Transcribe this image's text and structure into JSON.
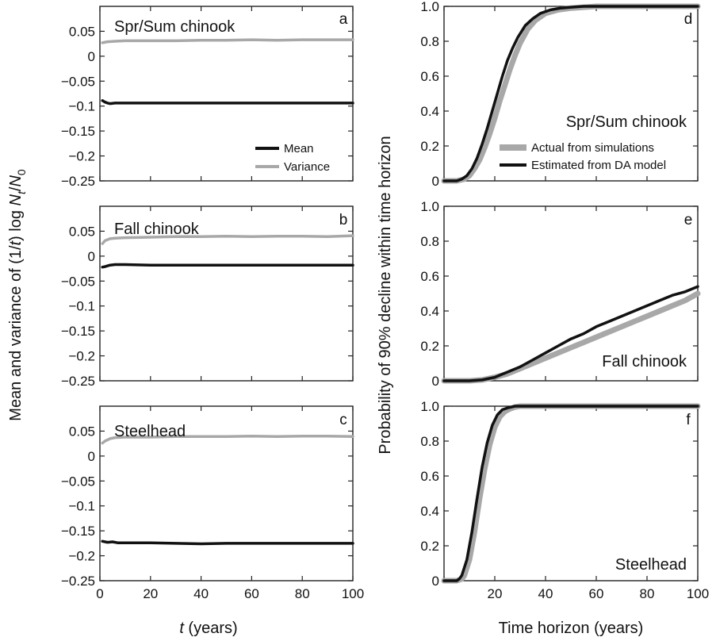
{
  "left_ylabel": {
    "prefix": "Mean and variance of (1/",
    "t": "t",
    "mid": ") log ",
    "N": "N",
    "sub_t": "t",
    "slash": "/",
    "N0": "N",
    "sub_0": "0"
  },
  "left_xlabel": {
    "t": "t",
    "rest": " (years)"
  },
  "right_ylabel": "Probability of 90% decline within time horizon",
  "right_xlabel": "Time horizon (years)",
  "legend_left": {
    "mean": "Mean",
    "variance": "Variance"
  },
  "legend_right": {
    "actual": "Actual from simulations",
    "estimated": "Estimated from DA model"
  },
  "colors": {
    "dark": "#111111",
    "gray": "#a8a8a8"
  },
  "chart_data": [
    {
      "id": "a",
      "type": "line",
      "panel_label": "Spr/Sum chinook",
      "letter": "a",
      "xlim": [
        0,
        100
      ],
      "ylim": [
        -0.25,
        0.1
      ],
      "yticks": [
        "0.05",
        "0",
        "−0.05",
        "−0.1",
        "−0.15",
        "−0.2",
        "−0.25"
      ],
      "ytick_values": [
        0.05,
        0,
        -0.05,
        -0.1,
        -0.15,
        -0.2,
        -0.25
      ],
      "series": [
        {
          "name": "Mean",
          "color": "dark",
          "x": [
            1,
            2,
            3,
            4,
            6,
            10,
            20,
            40,
            60,
            80,
            100
          ],
          "values": [
            -0.089,
            -0.092,
            -0.094,
            -0.095,
            -0.094,
            -0.094,
            -0.094,
            -0.094,
            -0.094,
            -0.094,
            -0.094
          ]
        },
        {
          "name": "Variance",
          "color": "gray",
          "x": [
            1,
            3,
            6,
            10,
            20,
            30,
            40,
            50,
            60,
            70,
            80,
            90,
            100
          ],
          "values": [
            0.027,
            0.029,
            0.03,
            0.031,
            0.031,
            0.031,
            0.032,
            0.032,
            0.033,
            0.032,
            0.033,
            0.033,
            0.033
          ]
        }
      ]
    },
    {
      "id": "b",
      "type": "line",
      "panel_label": "Fall chinook",
      "letter": "b",
      "xlim": [
        0,
        100
      ],
      "ylim": [
        -0.25,
        0.1
      ],
      "yticks": [
        "0.05",
        "0",
        "−0.05",
        "−0.1",
        "−0.15",
        "−0.2",
        "−0.25"
      ],
      "ytick_values": [
        0.05,
        0,
        -0.05,
        -0.1,
        -0.15,
        -0.2,
        -0.25
      ],
      "series": [
        {
          "name": "Mean",
          "color": "dark",
          "x": [
            1,
            2,
            4,
            6,
            10,
            20,
            40,
            60,
            80,
            100
          ],
          "values": [
            -0.022,
            -0.021,
            -0.018,
            -0.017,
            -0.017,
            -0.018,
            -0.018,
            -0.018,
            -0.018,
            -0.018
          ]
        },
        {
          "name": "Variance",
          "color": "gray",
          "x": [
            1,
            2,
            4,
            6,
            10,
            20,
            30,
            40,
            50,
            60,
            70,
            80,
            90,
            100
          ],
          "values": [
            0.025,
            0.031,
            0.035,
            0.036,
            0.037,
            0.038,
            0.039,
            0.039,
            0.04,
            0.039,
            0.04,
            0.04,
            0.039,
            0.041
          ]
        }
      ]
    },
    {
      "id": "c",
      "type": "line",
      "panel_label": "Steelhead",
      "letter": "c",
      "xlim": [
        0,
        100
      ],
      "ylim": [
        -0.25,
        0.1
      ],
      "yticks": [
        "0.05",
        "0",
        "−0.05",
        "−0.1",
        "−0.15",
        "−0.2",
        "−0.25"
      ],
      "ytick_values": [
        0.05,
        0,
        -0.05,
        -0.1,
        -0.15,
        -0.2,
        -0.25
      ],
      "xticks": [
        "0",
        "20",
        "40",
        "60",
        "80",
        "100"
      ],
      "xtick_values": [
        0,
        20,
        40,
        60,
        80,
        100
      ],
      "series": [
        {
          "name": "Mean",
          "color": "dark",
          "x": [
            1,
            3,
            5,
            7,
            10,
            20,
            30,
            40,
            50,
            60,
            80,
            100
          ],
          "values": [
            -0.171,
            -0.173,
            -0.172,
            -0.174,
            -0.174,
            -0.174,
            -0.175,
            -0.176,
            -0.175,
            -0.175,
            -0.175,
            -0.175
          ]
        },
        {
          "name": "Variance",
          "color": "gray",
          "x": [
            1,
            2,
            4,
            6,
            10,
            20,
            30,
            40,
            50,
            60,
            70,
            80,
            90,
            100
          ],
          "values": [
            0.026,
            0.03,
            0.035,
            0.037,
            0.038,
            0.038,
            0.039,
            0.039,
            0.039,
            0.04,
            0.039,
            0.04,
            0.04,
            0.039
          ]
        }
      ]
    },
    {
      "id": "d",
      "type": "line",
      "panel_label": "Spr/Sum chinook",
      "letter": "d",
      "xlim": [
        0,
        100
      ],
      "ylim": [
        0,
        1
      ],
      "yticks": [
        "1.0",
        "0.8",
        "0.6",
        "0.4",
        "0.2",
        "0"
      ],
      "ytick_values": [
        1.0,
        0.8,
        0.6,
        0.4,
        0.2,
        0
      ],
      "series": [
        {
          "name": "Actual from simulations",
          "color": "gray",
          "x": [
            0,
            5,
            8,
            10,
            12,
            14,
            16,
            18,
            20,
            22,
            24,
            26,
            28,
            30,
            33,
            36,
            40,
            45,
            50,
            55,
            60,
            70,
            80,
            100
          ],
          "values": [
            0,
            0,
            0.01,
            0.03,
            0.07,
            0.12,
            0.19,
            0.27,
            0.36,
            0.46,
            0.55,
            0.64,
            0.72,
            0.79,
            0.87,
            0.92,
            0.96,
            0.98,
            0.99,
            0.995,
            1,
            1,
            1,
            1
          ]
        },
        {
          "name": "Estimated from DA model",
          "color": "dark",
          "x": [
            0,
            5,
            7,
            9,
            11,
            13,
            15,
            17,
            19,
            21,
            23,
            25,
            27,
            29,
            32,
            35,
            38,
            42,
            46,
            50,
            55,
            60,
            70,
            80,
            100
          ],
          "values": [
            0,
            0,
            0.01,
            0.03,
            0.07,
            0.13,
            0.21,
            0.3,
            0.4,
            0.5,
            0.6,
            0.69,
            0.76,
            0.82,
            0.89,
            0.93,
            0.96,
            0.98,
            0.99,
            0.995,
            1,
            1,
            1,
            1,
            1
          ]
        }
      ]
    },
    {
      "id": "e",
      "type": "line",
      "panel_label": "Fall chinook",
      "letter": "e",
      "xlim": [
        0,
        100
      ],
      "ylim": [
        0,
        1
      ],
      "yticks": [
        "1.0",
        "0.8",
        "0.6",
        "0.4",
        "0.2",
        "0"
      ],
      "ytick_values": [
        1.0,
        0.8,
        0.6,
        0.4,
        0.2,
        0
      ],
      "series": [
        {
          "name": "Actual from simulations",
          "color": "gray",
          "x": [
            0,
            10,
            15,
            20,
            25,
            30,
            35,
            40,
            45,
            50,
            55,
            60,
            65,
            70,
            75,
            80,
            85,
            90,
            95,
            100
          ],
          "values": [
            0,
            0,
            0.005,
            0.02,
            0.04,
            0.07,
            0.1,
            0.13,
            0.16,
            0.19,
            0.22,
            0.25,
            0.28,
            0.31,
            0.34,
            0.37,
            0.4,
            0.43,
            0.46,
            0.5
          ]
        },
        {
          "name": "Estimated from DA model",
          "color": "dark",
          "x": [
            0,
            10,
            15,
            20,
            25,
            30,
            35,
            40,
            45,
            50,
            55,
            60,
            65,
            70,
            75,
            80,
            85,
            90,
            95,
            100
          ],
          "values": [
            0,
            0,
            0.005,
            0.02,
            0.05,
            0.08,
            0.12,
            0.16,
            0.2,
            0.24,
            0.27,
            0.31,
            0.34,
            0.37,
            0.4,
            0.43,
            0.46,
            0.49,
            0.51,
            0.54
          ]
        }
      ]
    },
    {
      "id": "f",
      "type": "line",
      "panel_label": "Steelhead",
      "letter": "f",
      "xlim": [
        0,
        100
      ],
      "ylim": [
        0,
        1
      ],
      "yticks": [
        "1.0",
        "0.8",
        "0.6",
        "0.4",
        "0.2",
        "0"
      ],
      "ytick_values": [
        1.0,
        0.8,
        0.6,
        0.4,
        0.2,
        0
      ],
      "xticks": [
        "20",
        "40",
        "60",
        "80",
        "100"
      ],
      "xtick_values": [
        20,
        40,
        60,
        80,
        100
      ],
      "series": [
        {
          "name": "Actual from simulations",
          "color": "gray",
          "x": [
            0,
            5,
            7,
            8,
            10,
            12,
            14,
            16,
            18,
            20,
            22,
            24,
            26,
            28,
            30,
            35,
            40,
            100
          ],
          "values": [
            0,
            0,
            0.01,
            0.03,
            0.12,
            0.28,
            0.47,
            0.64,
            0.78,
            0.88,
            0.94,
            0.97,
            0.985,
            0.995,
            1,
            1,
            1,
            1
          ]
        },
        {
          "name": "Estimated from DA model",
          "color": "dark",
          "x": [
            0,
            5,
            6,
            7,
            9,
            11,
            13,
            15,
            17,
            19,
            21,
            23,
            25,
            28,
            32,
            40,
            100
          ],
          "values": [
            0,
            0,
            0.01,
            0.03,
            0.12,
            0.28,
            0.47,
            0.65,
            0.79,
            0.89,
            0.95,
            0.98,
            0.99,
            1,
            1,
            1,
            1
          ]
        }
      ]
    }
  ]
}
